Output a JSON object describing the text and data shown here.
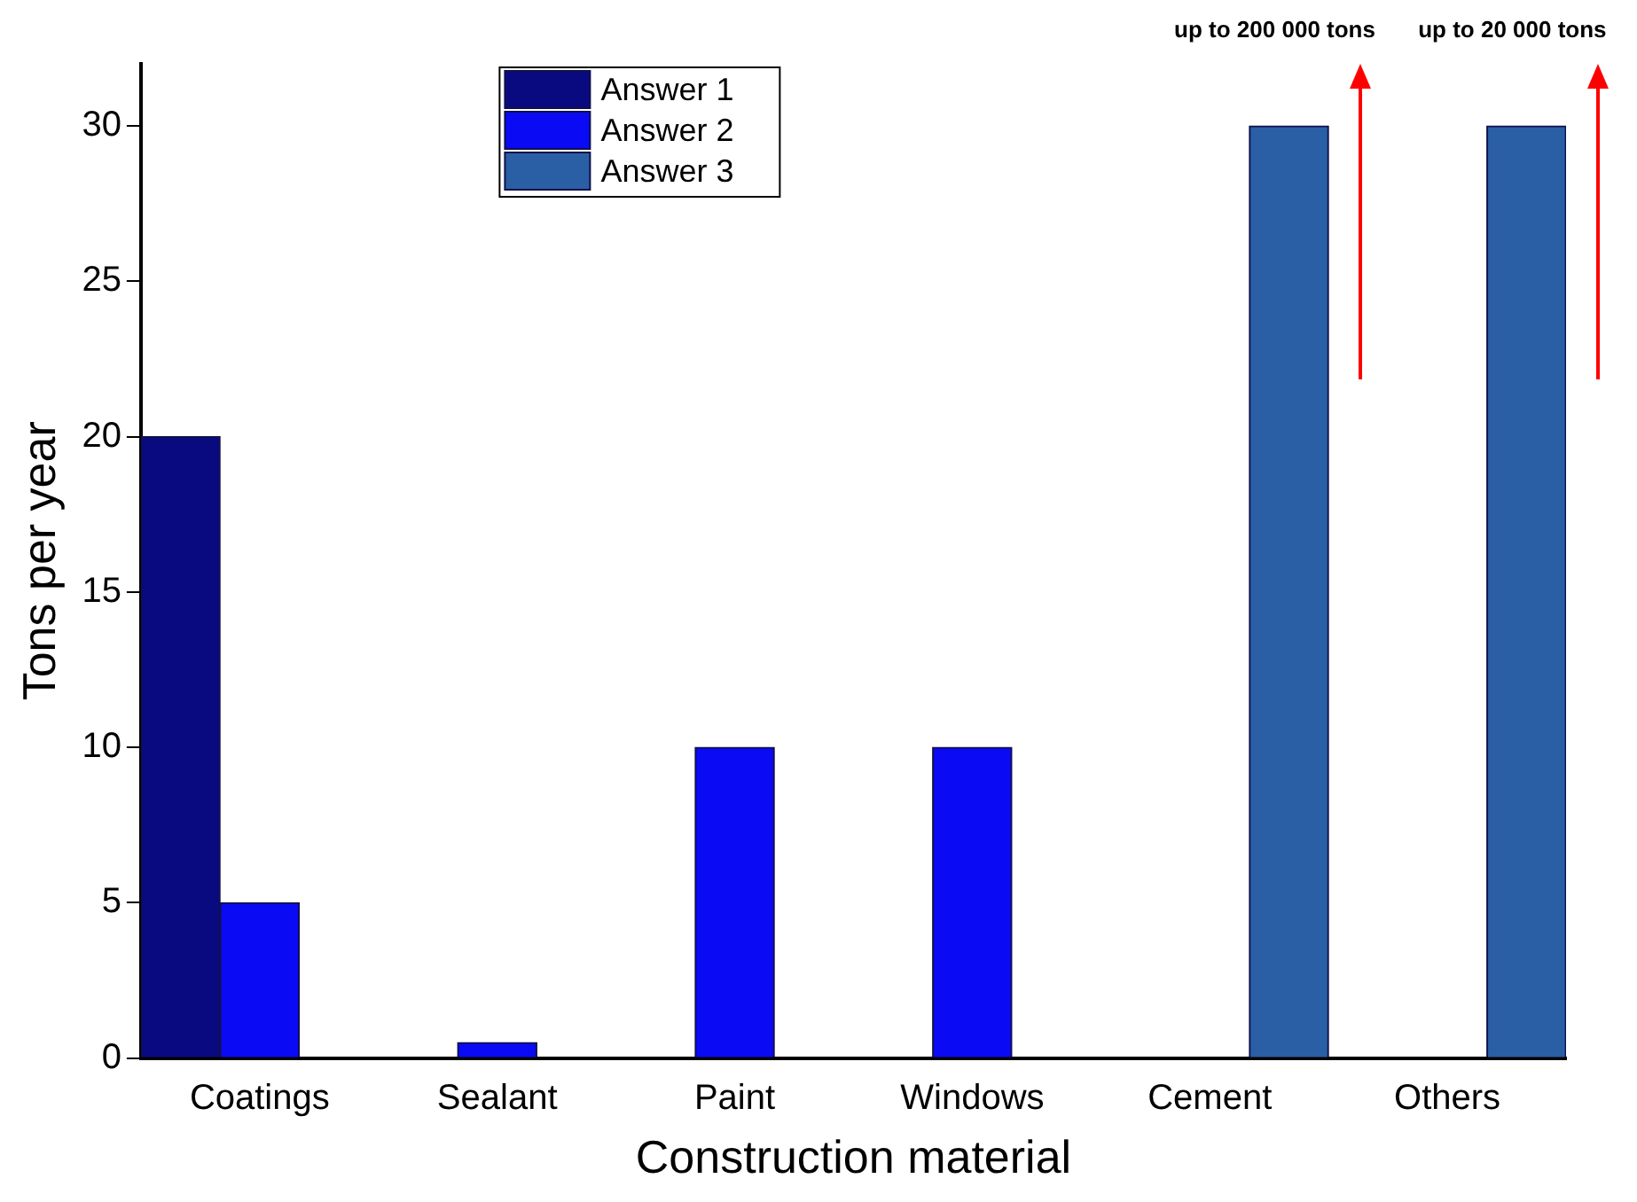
{
  "chart_data": {
    "type": "bar",
    "xlabel": "Construction material",
    "ylabel": "Tons per year",
    "categories": [
      "Coatings",
      "Sealant",
      "Paint",
      "Windows",
      "Cement",
      "Others"
    ],
    "series": [
      {
        "name": "Answer 1",
        "color": "#0a0a80",
        "values": [
          20,
          null,
          null,
          null,
          null,
          null
        ]
      },
      {
        "name": "Answer 2",
        "color": "#0a0af5",
        "values": [
          5,
          0.5,
          10,
          10,
          null,
          null
        ]
      },
      {
        "name": "Answer 3",
        "color": "#2a5fa5",
        "values": [
          null,
          null,
          null,
          null,
          30,
          30
        ]
      }
    ],
    "ylim": [
      0,
      32
    ],
    "yticks": [
      0,
      5,
      10,
      15,
      20,
      25,
      30
    ],
    "grid": false,
    "legend": "top",
    "annotations": [
      "up to 200 000 tons",
      "up to 20 000 tons"
    ]
  }
}
